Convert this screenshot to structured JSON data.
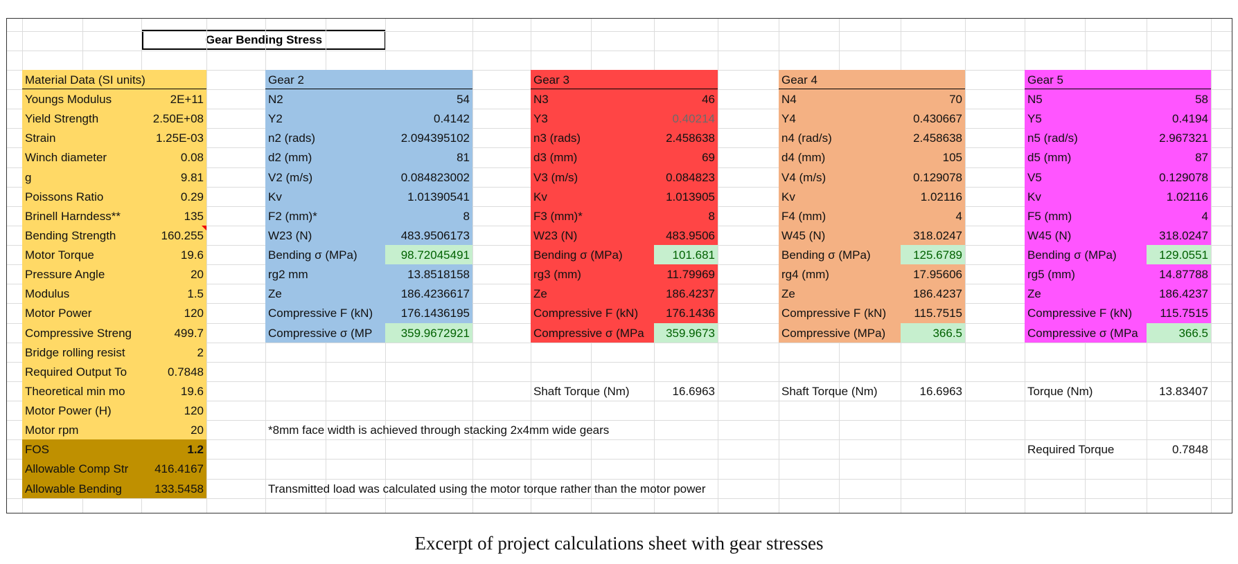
{
  "title": "Gear Bending Stress",
  "material": {
    "header": "Material Data (SI units)",
    "rows": [
      [
        "Youngs Modulus",
        "2E+11"
      ],
      [
        "Yield Strength",
        "2.50E+08"
      ],
      [
        "Strain",
        "1.25E-03"
      ],
      [
        "Winch diameter",
        "0.08"
      ],
      [
        "g",
        "9.81"
      ],
      [
        "Poissons Ratio",
        "0.29"
      ],
      [
        "Brinell Harndess**",
        "135"
      ],
      [
        "Bending Strength",
        "160.255"
      ],
      [
        "Motor Torque",
        "19.6"
      ],
      [
        "Pressure Angle",
        "20"
      ],
      [
        "Modulus",
        "1.5"
      ],
      [
        "Motor Power",
        "120"
      ],
      [
        "Compressive Streng",
        "499.7"
      ],
      [
        "Bridge rolling resist",
        "2"
      ],
      [
        "Required Output To",
        "0.7848"
      ],
      [
        "Theoretical min mo",
        "19.6"
      ],
      [
        "Motor Power (H)",
        "120"
      ],
      [
        "Motor rpm",
        "20"
      ],
      [
        "FOS",
        "1.2"
      ],
      [
        "Allowable Comp Str",
        "416.4167"
      ],
      [
        "Allowable Bending",
        "133.5458"
      ]
    ]
  },
  "gears": [
    {
      "header": "Gear 2",
      "rows": [
        [
          "N2",
          "54"
        ],
        [
          "Y2",
          "0.4142"
        ],
        [
          "n2 (rads)",
          "2.094395102"
        ],
        [
          "d2 (mm)",
          "81"
        ],
        [
          "V2 (m/s)",
          "0.084823002"
        ],
        [
          "Kv",
          "1.01390541"
        ],
        [
          "F2 (mm)*",
          "8"
        ],
        [
          "W23 (N)",
          "483.9506173"
        ],
        [
          "Bending σ (MPa)",
          "98.72045491"
        ],
        [
          "rg2 mm",
          "13.8518158"
        ],
        [
          "Ze",
          "186.4236617"
        ],
        [
          "Compressive F (kN)",
          "176.1436195"
        ],
        [
          "Compressive σ (MP",
          "359.9672921"
        ]
      ],
      "extra": []
    },
    {
      "header": "Gear 3",
      "rows": [
        [
          "N3",
          "46"
        ],
        [
          "Y3",
          "0.40214"
        ],
        [
          "n3 (rads)",
          "2.458638"
        ],
        [
          "d3 (mm)",
          "69"
        ],
        [
          "V3 (m/s)",
          "0.084823"
        ],
        [
          "Kv",
          "1.013905"
        ],
        [
          "F3 (mm)*",
          "8"
        ],
        [
          "W23 (N)",
          "483.9506"
        ],
        [
          "Bending σ (MPa)",
          "101.681"
        ],
        [
          "rg3 (mm)",
          "11.79969"
        ],
        [
          "Ze",
          "186.4237"
        ],
        [
          "Compressive F (kN)",
          "176.1436"
        ],
        [
          "Compressive σ (MPa",
          "359.9673"
        ]
      ],
      "extra": [
        [
          "Shaft Torque (Nm)",
          "16.6963"
        ]
      ]
    },
    {
      "header": "Gear 4",
      "rows": [
        [
          "N4",
          "70"
        ],
        [
          "Y4",
          "0.430667"
        ],
        [
          "n4 (rad/s)",
          "2.458638"
        ],
        [
          "d4 (mm)",
          "105"
        ],
        [
          "V4 (m/s)",
          "0.129078"
        ],
        [
          "Kv",
          "1.02116"
        ],
        [
          "F4 (mm)",
          "4"
        ],
        [
          "W45 (N)",
          "318.0247"
        ],
        [
          "Bending σ (MPa)",
          "125.6789"
        ],
        [
          "rg4 (mm)",
          "17.95606"
        ],
        [
          "Ze",
          "186.4237"
        ],
        [
          "Compressive F (kN)",
          "115.7515"
        ],
        [
          "Compressive  (MPa)",
          "366.5"
        ]
      ],
      "extra": [
        [
          "Shaft Torque (Nm)",
          "16.6963"
        ]
      ]
    },
    {
      "header": "Gear 5",
      "rows": [
        [
          "N5",
          "58"
        ],
        [
          "Y5",
          "0.4194"
        ],
        [
          "n5 (rad/s)",
          "2.967321"
        ],
        [
          "d5 (mm)",
          "87"
        ],
        [
          "V5",
          "0.129078"
        ],
        [
          "Kv",
          "1.02116"
        ],
        [
          "F5 (mm)",
          "4"
        ],
        [
          "W45 (N)",
          "318.0247"
        ],
        [
          "Bending σ (MPa)",
          "129.0551"
        ],
        [
          "rg5 (mm)",
          "14.87788"
        ],
        [
          "Ze",
          "186.4237"
        ],
        [
          "Compressive F (kN)",
          "115.7515"
        ],
        [
          "Compressive σ (MPa",
          "366.5"
        ]
      ],
      "extra": [
        [
          "Torque (Nm)",
          "13.83407"
        ],
        [
          "Required Torque",
          "0.7848"
        ]
      ]
    }
  ],
  "notes": [
    "*8mm face width is achieved through stacking 2x4mm wide gears",
    "Transmitted load was calculated using the motor torque rather than the motor power"
  ],
  "caption": "Excerpt of project calculations sheet with gear stresses"
}
